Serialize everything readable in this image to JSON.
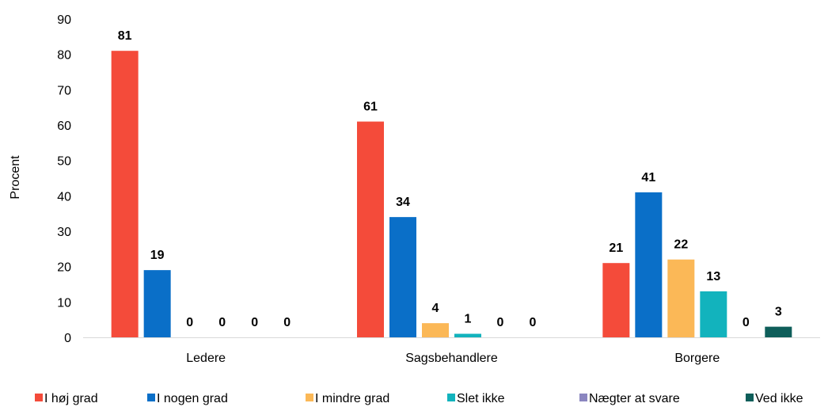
{
  "chart_data": {
    "type": "bar",
    "title": "",
    "xlabel": "",
    "ylabel": "Procent",
    "ylim": [
      0,
      90
    ],
    "yticks": [
      0,
      10,
      20,
      30,
      40,
      50,
      60,
      70,
      80,
      90
    ],
    "grid": false,
    "legend_position": "bottom",
    "categories": [
      "Ledere",
      "Sagsbehandlere",
      "Borgere"
    ],
    "series": [
      {
        "name": "I høj grad",
        "color": "#F44B3A",
        "values": [
          81,
          61,
          21
        ],
        "labels": [
          "81",
          "61",
          "21"
        ]
      },
      {
        "name": "I nogen grad",
        "color": "#0A6FC8",
        "values": [
          19,
          34,
          41
        ],
        "labels": [
          "19",
          "34",
          "41"
        ]
      },
      {
        "name": "I mindre grad",
        "color": "#FBB857",
        "values": [
          0,
          4,
          22
        ],
        "labels": [
          "0",
          "4",
          "22"
        ]
      },
      {
        "name": "Slet ikke",
        "color": "#12B3BD",
        "values": [
          0,
          1,
          13
        ],
        "labels": [
          "0",
          "1",
          "13"
        ]
      },
      {
        "name": "Nægter at svare",
        "color": "#8B86C0",
        "values": [
          0,
          0,
          0
        ],
        "labels": [
          "0",
          "0",
          "0"
        ]
      },
      {
        "name": "Ved ikke",
        "color": "#0E5E5A",
        "values": [
          0,
          0,
          3
        ],
        "labels": [
          "0",
          "0",
          "3"
        ]
      }
    ]
  }
}
